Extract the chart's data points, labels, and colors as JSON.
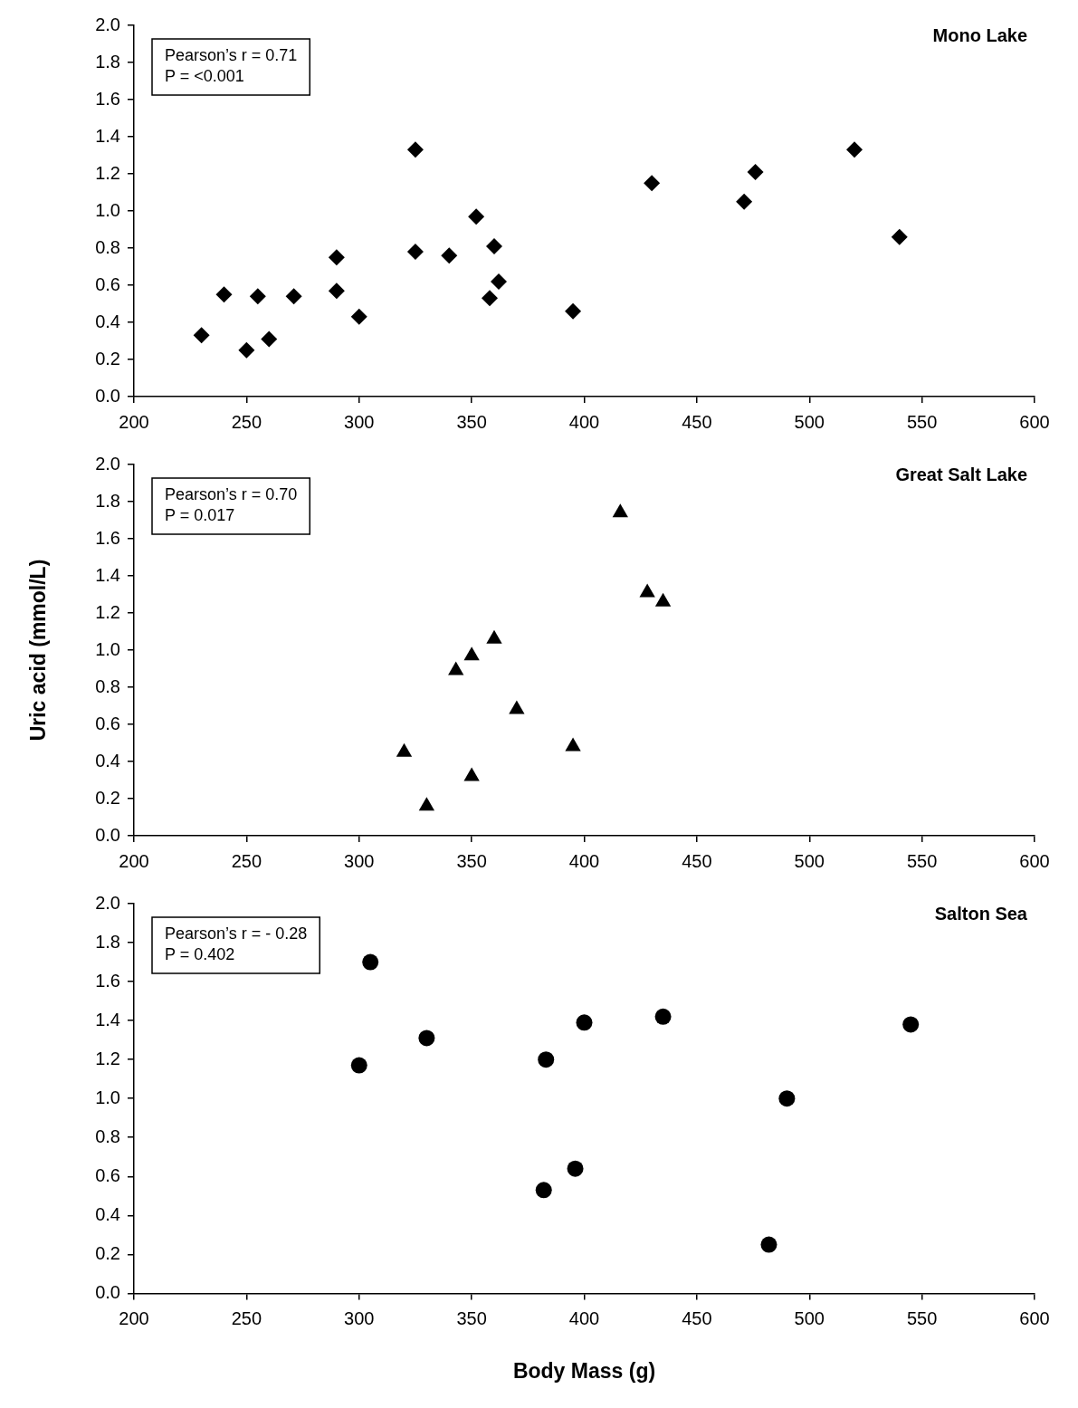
{
  "chart_data": [
    {
      "type": "scatter",
      "title": "Mono Lake",
      "annotations": [
        "Pearson’s r = 0.71",
        "P = <0.001"
      ],
      "marker": "diamond",
      "legend": false,
      "grid": false,
      "series": [
        {
          "color": "#000000",
          "x": [
            230,
            240,
            250,
            255,
            260,
            271,
            290,
            290,
            300,
            325,
            325,
            340,
            352,
            358,
            360,
            362,
            395,
            430,
            471,
            476,
            520,
            540
          ],
          "values": [
            0.33,
            0.55,
            0.25,
            0.54,
            0.31,
            0.54,
            0.57,
            0.75,
            0.43,
            1.33,
            0.78,
            0.76,
            0.97,
            0.53,
            0.81,
            0.62,
            0.46,
            1.15,
            1.05,
            1.21,
            1.33,
            0.86
          ]
        }
      ],
      "xlim": [
        200,
        600
      ],
      "xticks": [
        200,
        250,
        300,
        350,
        400,
        450,
        500,
        550,
        600
      ],
      "ylim": [
        0,
        2
      ],
      "yticks": [
        {
          "value": 0,
          "label": "0.0"
        },
        0.2,
        0.4,
        0.6,
        0.8,
        {
          "value": 1,
          "label": "1.0"
        },
        1.2,
        1.4,
        1.6,
        1.8,
        {
          "value": 2,
          "label": "2.0"
        }
      ]
    },
    {
      "type": "scatter",
      "title": "Great Salt Lake",
      "ylabel": "Uric acid (mmol/L)",
      "annotations": [
        "Pearson’s r = 0.70",
        "P = 0.017"
      ],
      "marker": "triangle",
      "legend": false,
      "grid": false,
      "series": [
        {
          "color": "#000000",
          "x": [
            320,
            330,
            343,
            350,
            350,
            360,
            370,
            395,
            416,
            428,
            435
          ],
          "values": [
            0.45,
            0.16,
            0.89,
            0.97,
            0.32,
            1.06,
            0.68,
            0.48,
            1.74,
            1.31,
            1.26
          ]
        }
      ],
      "xlim": [
        200,
        600
      ],
      "xticks": [
        200,
        250,
        300,
        350,
        400,
        450,
        500,
        550,
        600
      ],
      "ylim": [
        0,
        2
      ],
      "yticks": [
        {
          "value": 0,
          "label": "0.0"
        },
        0.2,
        0.4,
        0.6,
        0.8,
        {
          "value": 1,
          "label": "1.0"
        },
        1.2,
        1.4,
        1.6,
        1.8,
        {
          "value": 2,
          "label": "2.0"
        }
      ]
    },
    {
      "type": "scatter",
      "title": "Salton Sea",
      "xlabel": "Body Mass (g)",
      "annotations": [
        "Pearson’s r = - 0.28",
        "P = 0.402"
      ],
      "marker": "circle",
      "legend": false,
      "grid": false,
      "series": [
        {
          "color": "#000000",
          "x": [
            300,
            305,
            330,
            383,
            382,
            396,
            400,
            435,
            482,
            490,
            545
          ],
          "values": [
            1.17,
            1.7,
            1.31,
            1.2,
            0.53,
            0.64,
            1.39,
            1.42,
            0.25,
            1.0,
            1.38
          ]
        }
      ],
      "xlim": [
        200,
        600
      ],
      "xticks": [
        200,
        250,
        300,
        350,
        400,
        450,
        500,
        550,
        600
      ],
      "ylim": [
        0,
        2
      ],
      "yticks": [
        {
          "value": 0,
          "label": "0.0"
        },
        0.2,
        0.4,
        0.6,
        0.8,
        {
          "value": 1,
          "label": "1.0"
        },
        1.2,
        1.4,
        1.6,
        1.8,
        {
          "value": 2,
          "label": "2.0"
        }
      ]
    }
  ]
}
